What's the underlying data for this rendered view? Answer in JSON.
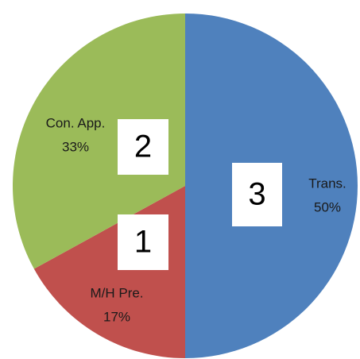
{
  "chart_data": {
    "type": "pie",
    "categories": [
      "Trans.",
      "M/H Pre.",
      "Con. App."
    ],
    "values": [
      50,
      17,
      33
    ],
    "value_labels": [
      "50%",
      "17%",
      "33%"
    ],
    "counts": [
      3,
      1,
      2
    ],
    "colors": [
      "#4f81bd",
      "#c0504d",
      "#9bbb59"
    ],
    "start_angle": 0,
    "direction": "clockwise"
  }
}
